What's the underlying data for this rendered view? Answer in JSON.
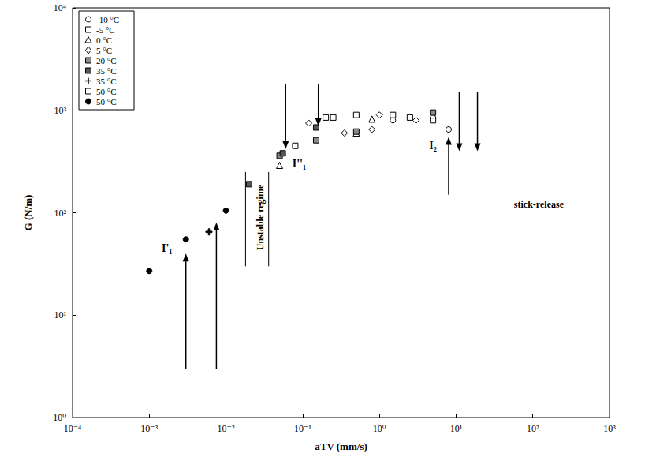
{
  "chart_data": {
    "type": "scatter",
    "x_label": "aTV (mm/s)",
    "y_label": "G (N/m)",
    "log": true,
    "grid": false,
    "legend": "top-left",
    "xlim": [
      0.0001,
      1000
    ],
    "ylim": [
      1,
      10000
    ],
    "xticks": [
      {
        "value": 0.0001,
        "label": "10⁻⁴"
      },
      {
        "value": 0.001,
        "label": "10⁻³"
      },
      {
        "value": 0.01,
        "label": "10⁻²"
      },
      {
        "value": 0.1,
        "label": "10⁻¹"
      },
      {
        "value": 1,
        "label": "10⁰"
      },
      {
        "value": 10,
        "label": "10¹"
      },
      {
        "value": 100,
        "label": "10²"
      },
      {
        "value": 1000,
        "label": "10³"
      }
    ],
    "yticks": [
      {
        "value": 1,
        "label": "10⁰"
      },
      {
        "value": 10,
        "label": "10¹"
      },
      {
        "value": 100,
        "label": "10²"
      },
      {
        "value": 1000,
        "label": "10³"
      },
      {
        "value": 10000,
        "label": "10⁴"
      }
    ],
    "series": [
      {
        "name": "-10 °C",
        "marker": "circle",
        "color": "#000000",
        "x": [
          1.5,
          8
        ],
        "values": [
          800,
          650
        ]
      },
      {
        "name": "-5 °C",
        "marker": "square",
        "color": "#000000",
        "x": [
          0.25,
          0.5,
          2.5,
          5
        ],
        "values": [
          850,
          900,
          850,
          800
        ]
      },
      {
        "name": "0 °C",
        "marker": "triangle",
        "color": "#000000",
        "x": [
          0.05,
          0.5,
          0.8,
          5
        ],
        "values": [
          290,
          600,
          820,
          900
        ]
      },
      {
        "name": "5 °C",
        "marker": "diamond",
        "color": "#000000",
        "x": [
          0.12,
          0.35,
          0.8,
          1,
          3
        ],
        "values": [
          750,
          600,
          650,
          900,
          800
        ]
      },
      {
        "name": "20 °C",
        "marker": "half-filled square",
        "color": "#000000",
        "x": [
          0.05,
          0.15,
          0.5,
          5
        ],
        "values": [
          360,
          510,
          620,
          950
        ]
      },
      {
        "name": "35 °C",
        "marker": "filled square",
        "color": "#000000",
        "x": [
          0.02,
          0.055,
          0.15
        ],
        "values": [
          190,
          380,
          680
        ]
      },
      {
        "name": "35 °C",
        "marker": "plus",
        "color": "#000000",
        "x": [
          0.006
        ],
        "values": [
          65
        ]
      },
      {
        "name": "50 °C",
        "marker": "square",
        "color": "#000000",
        "x": [
          0.08,
          0.2,
          1.5
        ],
        "values": [
          450,
          850,
          900
        ]
      },
      {
        "name": "50 °C",
        "marker": "filled circle",
        "color": "#000000",
        "x": [
          0.001,
          0.003,
          0.01
        ],
        "values": [
          27,
          55,
          105
        ]
      }
    ],
    "annotations": [
      {
        "text": "I'₁",
        "x": 0.0017,
        "y": 45
      },
      {
        "text": "Unstable regime",
        "x": 0.028,
        "y": 90
      },
      {
        "text": "I''₁",
        "x": 0.09,
        "y": 300
      },
      {
        "text": "I₂",
        "x": 5,
        "y": 450
      },
      {
        "text": "stick-release",
        "x": 120,
        "y": 120
      }
    ],
    "arrows": [
      {
        "x": 0.003,
        "from": 3,
        "to": 40
      },
      {
        "x": 0.0075,
        "from": 3,
        "to": 80
      },
      {
        "x": 0.06,
        "from": 1800,
        "to": 420
      },
      {
        "x": 0.16,
        "from": 1800,
        "to": 700
      },
      {
        "x": 8,
        "from": 150,
        "to": 550
      },
      {
        "x": 11,
        "from": 1500,
        "to": 400
      },
      {
        "x": 19,
        "from": 1500,
        "to": 400
      }
    ],
    "lines": [
      {
        "x": 0.018,
        "from": 30,
        "to": 250
      },
      {
        "x": 0.036,
        "from": 30,
        "to": 250
      }
    ]
  }
}
